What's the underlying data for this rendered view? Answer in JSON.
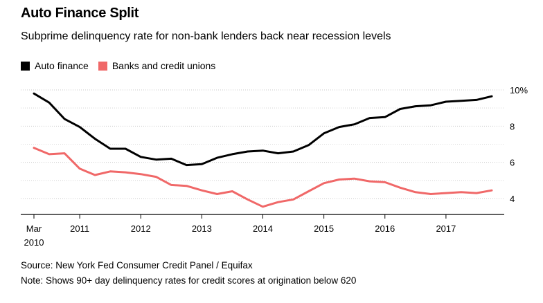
{
  "title": "Auto Finance Split",
  "subtitle": "Subprime delinquency rate for non-bank lenders back near recession levels",
  "source": "Source: New York Fed Consumer Credit Panel / Equifax",
  "note": "Note: Shows 90+ day delinquency rates for credit scores at origination below 620",
  "colors": {
    "auto_finance": "#000000",
    "banks": "#f06868"
  },
  "chart_data": {
    "type": "line",
    "title": "Auto Finance Split",
    "xlabel": "",
    "ylabel": "",
    "ylim": [
      3,
      10.5
    ],
    "y_ticks": [
      {
        "value": 10,
        "label": "10%"
      },
      {
        "value": 8,
        "label": "8"
      },
      {
        "value": 6,
        "label": "6"
      },
      {
        "value": 4,
        "label": "4"
      }
    ],
    "x_ticks": [
      {
        "value": 0,
        "label": "Mar",
        "label2": "2010"
      },
      {
        "value": 3,
        "label": "2011",
        "label2": ""
      },
      {
        "value": 7,
        "label": "2012",
        "label2": ""
      },
      {
        "value": 11,
        "label": "2013",
        "label2": ""
      },
      {
        "value": 15,
        "label": "2014",
        "label2": ""
      },
      {
        "value": 19,
        "label": "2015",
        "label2": ""
      },
      {
        "value": 23,
        "label": "2016",
        "label2": ""
      },
      {
        "value": 27,
        "label": "2017",
        "label2": ""
      }
    ],
    "x_range": [
      0,
      30
    ],
    "x": [
      0,
      1,
      2,
      3,
      4,
      5,
      6,
      7,
      8,
      9,
      10,
      11,
      12,
      13,
      14,
      15,
      16,
      17,
      18,
      19,
      20,
      21,
      22,
      23,
      24,
      25,
      26,
      27,
      28,
      29,
      30
    ],
    "series": [
      {
        "name": "Auto finance",
        "color": "#000000",
        "values": [
          9.8,
          9.3,
          8.4,
          7.95,
          7.3,
          6.75,
          6.75,
          6.3,
          6.15,
          6.2,
          5.85,
          5.9,
          6.25,
          6.45,
          6.6,
          6.65,
          6.5,
          6.6,
          6.95,
          7.6,
          7.95,
          8.1,
          8.45,
          8.5,
          8.95,
          9.1,
          9.15,
          9.35,
          9.4,
          9.45,
          9.65
        ]
      },
      {
        "name": "Banks and credit unions",
        "color": "#f06868",
        "values": [
          6.8,
          6.45,
          6.5,
          5.65,
          5.3,
          5.5,
          5.45,
          5.35,
          5.2,
          4.75,
          4.7,
          4.45,
          4.25,
          4.4,
          3.95,
          3.55,
          3.8,
          3.95,
          4.4,
          4.85,
          5.05,
          5.1,
          4.95,
          4.9,
          4.6,
          4.35,
          4.25,
          4.3,
          4.35,
          4.3,
          4.45
        ]
      }
    ]
  }
}
